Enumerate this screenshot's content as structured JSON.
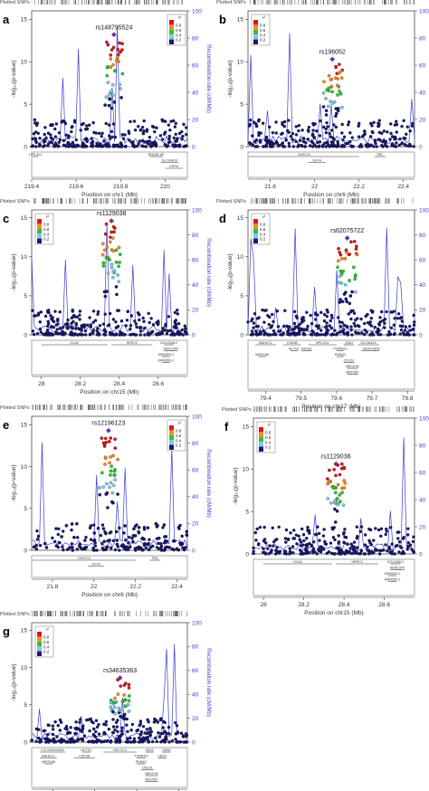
{
  "figure": {
    "plotted_snps_label": "Plotted SNPs",
    "ylabel": "-log₁₀(p-value)",
    "rec_label": "Recombination rate (cM/Mb)",
    "rec_ticks": [
      0,
      20,
      40,
      60,
      80,
      100
    ],
    "legend_title": "r²",
    "legend_ticks": [
      "0.8",
      "0.6",
      "0.4",
      "0.2"
    ],
    "legend_colors": [
      "#d7191c",
      "#f58b23",
      "#2fc52f",
      "#7fc6ec",
      "#1a1a6e"
    ]
  },
  "chart_data": [
    {
      "type": "scatter",
      "panel": "a",
      "top_snp": "rs148795524",
      "xlabel": "Position on chr1 (Mb)",
      "xlim": [
        219.4,
        220.1
      ],
      "ylim": [
        0,
        16
      ],
      "xticks": [
        219.4,
        219.6,
        219.8,
        220
      ],
      "yticks": [
        0,
        5,
        10,
        15
      ],
      "lead": {
        "x": 219.77,
        "y": 13.2
      },
      "genes": [
        [
          "LYPLAL1",
          219.35,
          219.43,
          0
        ],
        [
          "RNU5F-8P",
          219.93,
          219.99,
          0
        ],
        [
          "SLC30A10",
          219.98,
          220.06,
          1
        ],
        [
          "EPRS",
          220.0,
          220.08,
          2
        ]
      ]
    },
    {
      "type": "scatter",
      "panel": "b",
      "top_snp": "rs196052",
      "xlabel": "Position on chr6 (Mb)",
      "xlim": [
        21.7,
        22.45
      ],
      "ylim": [
        0,
        16
      ],
      "xticks": [
        21.8,
        22,
        22.2,
        22.4
      ],
      "yticks": [
        0,
        5,
        10,
        15
      ],
      "lead": {
        "x": 22.08,
        "y": 10.3
      },
      "genes": [
        [
          "CASC15",
          21.65,
          22.2,
          0
        ],
        [
          "PRL",
          22.27,
          22.32,
          0
        ],
        [
          "SOX4",
          21.97,
          22.05,
          1
        ]
      ]
    },
    {
      "type": "scatter",
      "panel": "c",
      "top_snp": "rs1129038",
      "xlabel": "Position on chr15 (Mb)",
      "xlim": [
        27.95,
        28.75
      ],
      "ylim": [
        0,
        16
      ],
      "xticks": [
        28,
        28.2,
        28.4,
        28.6
      ],
      "yticks": [
        0,
        5,
        10,
        15
      ],
      "lead": {
        "x": 28.36,
        "y": 14.6
      },
      "genes": [
        [
          "OCA2",
          28.0,
          28.34,
          0
        ],
        [
          "HERC2",
          28.36,
          28.57,
          0
        ],
        [
          "GOLGA6L2",
          28.63,
          28.68,
          0
        ],
        [
          "HERC2P9",
          28.63,
          28.7,
          1
        ],
        [
          "MIR4509-3",
          28.62,
          28.66,
          2
        ],
        [
          "MIR4509-1",
          28.62,
          28.66,
          3
        ]
      ]
    },
    {
      "type": "scatter",
      "panel": "d",
      "top_snp": "rs62075722",
      "xlabel": "Position on chr17 (Mb)",
      "xlim": [
        79.35,
        79.82
      ],
      "ylim": [
        0,
        16
      ],
      "xticks": [
        79.4,
        79.5,
        79.6,
        79.7,
        79.8
      ],
      "yticks": [
        0,
        5,
        10,
        15
      ],
      "lead": {
        "x": 79.63,
        "y": 12.4
      },
      "genes": [
        [
          "BAHCC1",
          79.37,
          79.43,
          0
        ],
        [
          "CSK3B",
          79.45,
          79.5,
          0
        ],
        [
          "NPLOC4",
          79.52,
          79.6,
          0
        ],
        [
          "CBX2",
          79.62,
          79.65,
          0
        ],
        [
          "SLC38A10",
          79.66,
          79.72,
          0
        ],
        [
          "ACTG1",
          79.47,
          79.49,
          1
        ],
        [
          "FSCN2",
          79.5,
          79.53,
          1
        ],
        [
          "TSPAN10",
          79.6,
          79.62,
          1
        ],
        [
          "CBX4",
          79.67,
          79.7,
          1
        ],
        [
          "CBX8",
          79.7,
          79.72,
          1
        ],
        [
          "MIR3186",
          79.38,
          79.4,
          2
        ],
        [
          "PDE6G",
          79.6,
          79.62,
          2
        ],
        [
          "OXLD1",
          79.62,
          79.65,
          3
        ],
        [
          "MIR4730",
          79.63,
          79.66,
          4
        ],
        [
          "MIR7MC",
          79.63,
          79.66,
          5
        ]
      ]
    },
    {
      "type": "scatter",
      "panel": "e",
      "top_snp": "rs12196123",
      "xlabel": "Position on chr6 (Mb)",
      "xlim": [
        21.7,
        22.45
      ],
      "ylim": [
        0,
        16
      ],
      "xticks": [
        21.8,
        22,
        22.2,
        22.4
      ],
      "yticks": [
        0,
        5,
        10,
        15
      ],
      "lead": {
        "x": 22.07,
        "y": 14.3
      },
      "genes": [
        [
          "CASC15",
          21.65,
          22.2,
          0
        ],
        [
          "PRL",
          22.27,
          22.32,
          0
        ],
        [
          "SOX4",
          21.97,
          22.05,
          1
        ]
      ]
    },
    {
      "type": "scatter",
      "panel": "f",
      "top_snp": "rs1129038",
      "xlabel": "Position on chr15 (Mb)",
      "xlim": [
        27.95,
        28.75
      ],
      "ylim": [
        0,
        16
      ],
      "xticks": [
        28,
        28.2,
        28.4,
        28.6
      ],
      "yticks": [
        0,
        5,
        10,
        15
      ],
      "lead": {
        "x": 28.36,
        "y": 10.6
      },
      "genes": [
        [
          "OCA2",
          28.0,
          28.34,
          0
        ],
        [
          "HERC2",
          28.36,
          28.57,
          0
        ],
        [
          "GOLGA6L2",
          28.63,
          28.68,
          0
        ],
        [
          "HERC2P9",
          28.63,
          28.7,
          1
        ],
        [
          "MIR4509-3",
          28.62,
          28.66,
          2
        ],
        [
          "MIR4509-1",
          28.62,
          28.66,
          3
        ]
      ]
    },
    {
      "type": "scatter",
      "panel": "g",
      "top_snp": "rs34635363",
      "xlabel": "Position on chr17 (Mb)",
      "xlim": [
        79.35,
        79.72
      ],
      "ylim": [
        0,
        16
      ],
      "xticks": [
        79.4,
        79.5,
        79.6,
        79.7
      ],
      "yticks": [
        0,
        5,
        10,
        15
      ],
      "lead": {
        "x": 79.56,
        "y": 8.6
      },
      "genes": [
        [
          "LOC100294362",
          79.37,
          79.43,
          0
        ],
        [
          "ACTG1",
          79.47,
          79.49,
          0
        ],
        [
          "NPLOC4",
          79.52,
          79.6,
          0
        ],
        [
          "CBX2",
          79.62,
          79.64,
          0
        ],
        [
          "CBX8",
          79.66,
          79.68,
          0
        ],
        [
          "BAHCC1",
          79.37,
          79.41,
          1
        ],
        [
          "CSK3B",
          79.45,
          79.5,
          1
        ],
        [
          "TSPAN10",
          79.6,
          79.62,
          1
        ],
        [
          "CBX4",
          79.65,
          79.67,
          1
        ],
        [
          "MIR3186",
          79.38,
          79.4,
          2
        ],
        [
          "PDE6G",
          79.6,
          79.62,
          2
        ],
        [
          "OXLD1",
          79.61,
          79.64,
          3
        ],
        [
          "MIR4730",
          79.62,
          79.65,
          4
        ],
        [
          "MIR7MC",
          79.62,
          79.65,
          5
        ]
      ]
    }
  ]
}
